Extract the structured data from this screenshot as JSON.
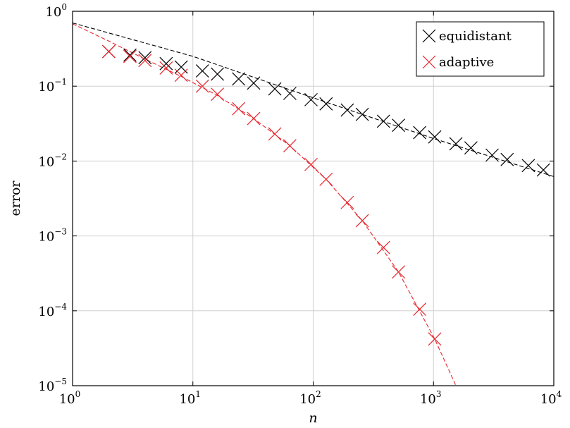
{
  "chart_data": {
    "type": "scatter",
    "xscale": "log",
    "yscale": "log",
    "xlim": [
      1,
      10000
    ],
    "ylim": [
      1e-05,
      1
    ],
    "xlabel": "n",
    "ylabel": "error",
    "grid": true,
    "legend_position": "top-right",
    "x_ticks": [
      {
        "base": "10",
        "exp": "0",
        "value": 1
      },
      {
        "base": "10",
        "exp": "1",
        "value": 10
      },
      {
        "base": "10",
        "exp": "2",
        "value": 100
      },
      {
        "base": "10",
        "exp": "3",
        "value": 1000
      },
      {
        "base": "10",
        "exp": "4",
        "value": 10000
      }
    ],
    "y_ticks": [
      {
        "base": "10",
        "exp": "0",
        "value": 1
      },
      {
        "base": "10",
        "exp": "−1",
        "value": 0.1
      },
      {
        "base": "10",
        "exp": "−2",
        "value": 0.01
      },
      {
        "base": "10",
        "exp": "−3",
        "value": 0.001
      },
      {
        "base": "10",
        "exp": "−4",
        "value": 0.0001
      },
      {
        "base": "10",
        "exp": "−5",
        "value": 1e-05
      }
    ],
    "series": [
      {
        "name": "equidistant",
        "color": "#000000",
        "marker": "x",
        "x": [
          2,
          3,
          4,
          6,
          8,
          12,
          16,
          24,
          32,
          48,
          64,
          96,
          128,
          192,
          256,
          384,
          512,
          768,
          1024,
          1536,
          2048,
          3072,
          4096,
          6144,
          8192
        ],
        "y": [
          0.29,
          0.26,
          0.24,
          0.2,
          0.18,
          0.16,
          0.145,
          0.125,
          0.11,
          0.092,
          0.08,
          0.066,
          0.058,
          0.048,
          0.042,
          0.034,
          0.03,
          0.024,
          0.021,
          0.017,
          0.015,
          0.012,
          0.0105,
          0.0087,
          0.0076
        ]
      },
      {
        "name": "adaptive",
        "color": "#e8262d",
        "marker": "x",
        "x": [
          2,
          3,
          4,
          6,
          8,
          12,
          16,
          24,
          32,
          48,
          64,
          96,
          128,
          192,
          256,
          384,
          512,
          768,
          1024
        ],
        "y": [
          0.29,
          0.25,
          0.22,
          0.175,
          0.14,
          0.1,
          0.078,
          0.05,
          0.037,
          0.023,
          0.016,
          0.009,
          0.0057,
          0.0028,
          0.0016,
          0.0007,
          0.00033,
          0.000105,
          4.2e-05
        ]
      }
    ],
    "fit_lines": [
      {
        "series": "equidistant",
        "color": "#000000",
        "style": "dashed",
        "x": [
          1,
          10,
          100,
          1000,
          10000
        ],
        "y": [
          0.7,
          0.25,
          0.07,
          0.02,
          0.0062
        ]
      },
      {
        "series": "adaptive",
        "color": "#e8262d",
        "style": "dashed",
        "x": [
          1,
          2,
          4,
          8,
          16,
          32,
          64,
          128,
          256,
          512,
          1024,
          1536
        ],
        "y": [
          0.68,
          0.4,
          0.23,
          0.135,
          0.075,
          0.037,
          0.016,
          0.0057,
          0.0016,
          0.00033,
          4.2e-05,
          1e-05
        ]
      }
    ]
  }
}
